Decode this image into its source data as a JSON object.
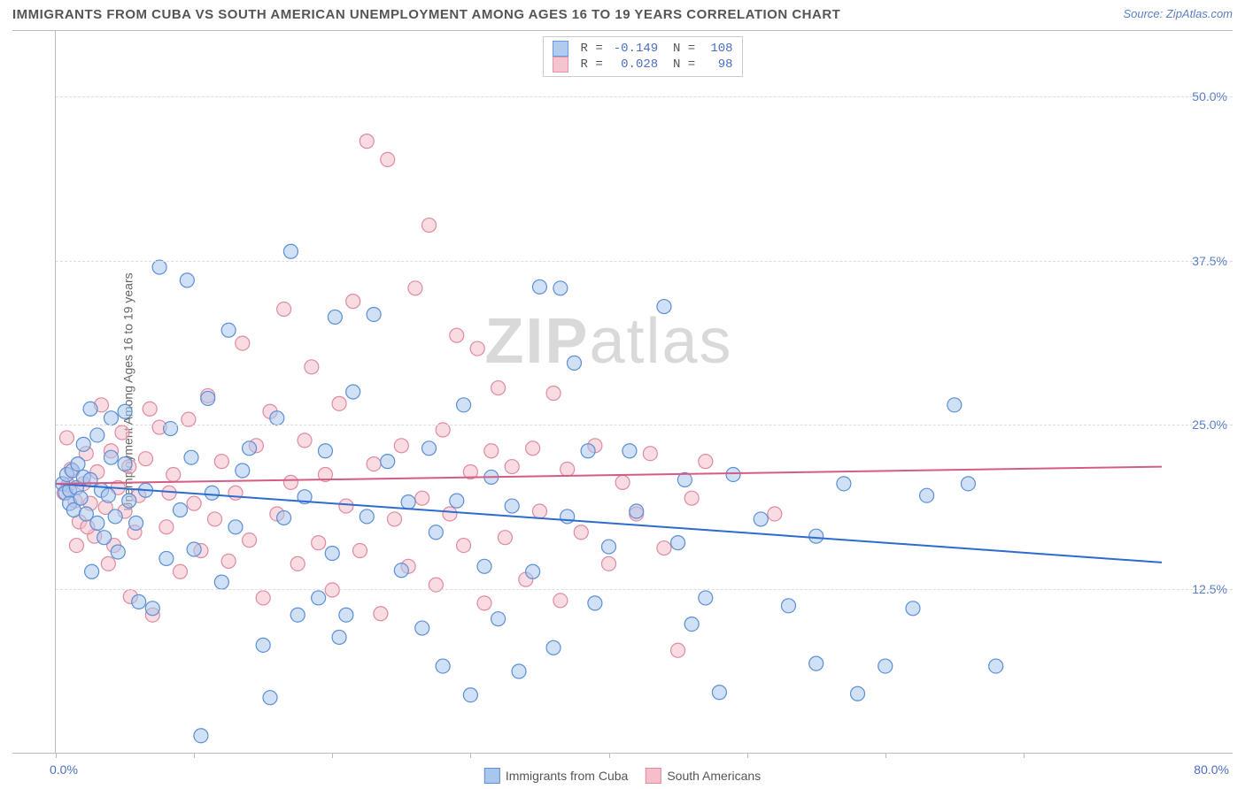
{
  "title": "IMMIGRANTS FROM CUBA VS SOUTH AMERICAN UNEMPLOYMENT AMONG AGES 16 TO 19 YEARS CORRELATION CHART",
  "source": "Source: ZipAtlas.com",
  "ylabel": "Unemployment Among Ages 16 to 19 years",
  "watermark_bold": "ZIP",
  "watermark_rest": "atlas",
  "xlim": [
    0,
    80
  ],
  "ylim": [
    0,
    55
  ],
  "x_left_label": "0.0%",
  "x_right_label": "80.0%",
  "y_ticks": [
    {
      "v": 12.5,
      "label": "12.5%"
    },
    {
      "v": 25.0,
      "label": "25.0%"
    },
    {
      "v": 37.5,
      "label": "37.5%"
    },
    {
      "v": 50.0,
      "label": "50.0%"
    }
  ],
  "x_tick_positions": [
    0,
    10,
    20,
    30,
    40,
    50,
    60,
    70
  ],
  "series": [
    {
      "key": "cuba",
      "label": "Immigrants from Cuba",
      "fill": "#a9c6ec",
      "stroke": "#5b8fd6",
      "fill_opacity": 0.55,
      "line_color": "#2e6bd0",
      "line_width": 2,
      "r": "-0.149",
      "n": "108",
      "trend": {
        "y_at_xmin": 20.5,
        "y_at_xmax": 14.5
      },
      "points": [
        [
          0.5,
          20.5
        ],
        [
          0.7,
          19.8
        ],
        [
          0.8,
          21.2
        ],
        [
          1,
          20
        ],
        [
          1,
          19
        ],
        [
          1.2,
          21.5
        ],
        [
          1.3,
          18.5
        ],
        [
          1.5,
          20.2
        ],
        [
          1.6,
          22
        ],
        [
          1.8,
          19.4
        ],
        [
          2,
          21
        ],
        [
          2,
          23.5
        ],
        [
          2.2,
          18.2
        ],
        [
          2.5,
          20.8
        ],
        [
          2.5,
          26.2
        ],
        [
          2.6,
          13.8
        ],
        [
          3,
          24.2
        ],
        [
          3,
          17.5
        ],
        [
          3.3,
          20
        ],
        [
          3.5,
          16.4
        ],
        [
          3.8,
          19.6
        ],
        [
          4,
          25.5
        ],
        [
          4,
          22.5
        ],
        [
          4.3,
          18
        ],
        [
          4.5,
          15.3
        ],
        [
          5,
          22
        ],
        [
          5,
          26
        ],
        [
          5.3,
          19.2
        ],
        [
          5.8,
          17.5
        ],
        [
          6,
          11.5
        ],
        [
          6.5,
          20
        ],
        [
          7,
          11
        ],
        [
          7.5,
          37
        ],
        [
          8,
          14.8
        ],
        [
          8.3,
          24.7
        ],
        [
          9,
          18.5
        ],
        [
          9.5,
          36
        ],
        [
          9.8,
          22.5
        ],
        [
          10,
          15.5
        ],
        [
          10.5,
          1.3
        ],
        [
          11,
          27
        ],
        [
          11.3,
          19.8
        ],
        [
          12,
          13
        ],
        [
          12.5,
          32.2
        ],
        [
          13,
          17.2
        ],
        [
          13.5,
          21.5
        ],
        [
          14,
          23.2
        ],
        [
          15,
          8.2
        ],
        [
          15.5,
          4.2
        ],
        [
          16,
          25.5
        ],
        [
          16.5,
          17.9
        ],
        [
          17,
          38.2
        ],
        [
          17.5,
          10.5
        ],
        [
          18,
          19.5
        ],
        [
          19,
          11.8
        ],
        [
          19.5,
          23
        ],
        [
          20,
          15.2
        ],
        [
          20.2,
          33.2
        ],
        [
          20.5,
          8.8
        ],
        [
          21,
          10.5
        ],
        [
          21.5,
          27.5
        ],
        [
          22.5,
          18
        ],
        [
          23,
          33.4
        ],
        [
          24,
          22.2
        ],
        [
          25,
          13.9
        ],
        [
          25.5,
          19.1
        ],
        [
          26.5,
          9.5
        ],
        [
          27,
          23.2
        ],
        [
          27.5,
          16.8
        ],
        [
          28,
          6.6
        ],
        [
          29,
          19.2
        ],
        [
          29.5,
          26.5
        ],
        [
          30,
          4.4
        ],
        [
          31,
          14.2
        ],
        [
          31.5,
          21
        ],
        [
          32,
          10.2
        ],
        [
          33,
          18.8
        ],
        [
          33.5,
          6.2
        ],
        [
          34.5,
          13.8
        ],
        [
          35,
          35.5
        ],
        [
          36,
          8
        ],
        [
          36.5,
          35.4
        ],
        [
          37,
          18
        ],
        [
          37.5,
          29.7
        ],
        [
          38.5,
          23
        ],
        [
          39,
          11.4
        ],
        [
          40,
          15.7
        ],
        [
          41.5,
          23
        ],
        [
          42,
          18.4
        ],
        [
          44,
          34
        ],
        [
          45,
          16
        ],
        [
          45.5,
          20.8
        ],
        [
          46,
          9.8
        ],
        [
          47,
          11.8
        ],
        [
          48,
          4.6
        ],
        [
          49,
          21.2
        ],
        [
          51,
          17.8
        ],
        [
          53,
          11.2
        ],
        [
          55,
          6.8
        ],
        [
          55,
          16.5
        ],
        [
          57,
          20.5
        ],
        [
          58,
          4.5
        ],
        [
          60,
          6.6
        ],
        [
          62,
          11
        ],
        [
          63,
          19.6
        ],
        [
          65,
          26.5
        ],
        [
          66,
          20.5
        ],
        [
          68,
          6.6
        ]
      ]
    },
    {
      "key": "south",
      "label": "South Americans",
      "fill": "#f4bfca",
      "stroke": "#e08aa0",
      "fill_opacity": 0.55,
      "line_color": "#d65c83",
      "line_width": 2,
      "r": "0.028",
      "n": "98",
      "trend": {
        "y_at_xmin": 20.5,
        "y_at_xmax": 21.8
      },
      "points": [
        [
          0.6,
          19.8
        ],
        [
          0.9,
          20.4
        ],
        [
          1.1,
          21.6
        ],
        [
          1.4,
          19.2
        ],
        [
          1.7,
          17.6
        ],
        [
          2,
          20.5
        ],
        [
          2.2,
          22.8
        ],
        [
          2.5,
          19
        ],
        [
          2.8,
          16.5
        ],
        [
          3,
          21.4
        ],
        [
          3.3,
          26.5
        ],
        [
          3.6,
          18.7
        ],
        [
          4,
          23
        ],
        [
          4.2,
          15.8
        ],
        [
          4.5,
          20.2
        ],
        [
          4.8,
          24.4
        ],
        [
          5,
          18.4
        ],
        [
          5.3,
          21.8
        ],
        [
          5.7,
          16.8
        ],
        [
          6,
          19.6
        ],
        [
          6.5,
          22.4
        ],
        [
          7,
          10.5
        ],
        [
          7.5,
          24.8
        ],
        [
          8,
          17.2
        ],
        [
          8.5,
          21.2
        ],
        [
          9,
          13.8
        ],
        [
          9.6,
          25.4
        ],
        [
          10,
          19
        ],
        [
          10.5,
          15.4
        ],
        [
          11,
          27.2
        ],
        [
          11.5,
          17.8
        ],
        [
          12,
          22.2
        ],
        [
          12.5,
          14.6
        ],
        [
          13,
          19.8
        ],
        [
          13.5,
          31.2
        ],
        [
          14,
          16.2
        ],
        [
          14.5,
          23.4
        ],
        [
          15,
          11.8
        ],
        [
          15.5,
          26
        ],
        [
          16,
          18.2
        ],
        [
          16.5,
          33.8
        ],
        [
          17,
          20.6
        ],
        [
          17.5,
          14.4
        ],
        [
          18,
          23.8
        ],
        [
          18.5,
          29.4
        ],
        [
          19,
          16
        ],
        [
          19.5,
          21.2
        ],
        [
          20,
          12.4
        ],
        [
          20.5,
          26.6
        ],
        [
          21,
          18.8
        ],
        [
          21.5,
          34.4
        ],
        [
          22,
          15.4
        ],
        [
          22.5,
          46.6
        ],
        [
          23,
          22
        ],
        [
          23.5,
          10.6
        ],
        [
          24,
          45.2
        ],
        [
          24.5,
          17.8
        ],
        [
          25,
          23.4
        ],
        [
          25.5,
          14.2
        ],
        [
          26,
          35.4
        ],
        [
          26.5,
          19.4
        ],
        [
          27,
          40.2
        ],
        [
          27.5,
          12.8
        ],
        [
          28,
          24.6
        ],
        [
          28.5,
          18.2
        ],
        [
          29,
          31.8
        ],
        [
          29.5,
          15.8
        ],
        [
          30,
          21.4
        ],
        [
          30.5,
          30.8
        ],
        [
          31,
          11.4
        ],
        [
          31.5,
          23
        ],
        [
          32,
          27.8
        ],
        [
          32.5,
          16.4
        ],
        [
          33,
          21.8
        ],
        [
          34,
          13.2
        ],
        [
          34.5,
          23.2
        ],
        [
          35,
          18.4
        ],
        [
          36,
          27.4
        ],
        [
          36.5,
          11.6
        ],
        [
          37,
          21.6
        ],
        [
          38,
          16.8
        ],
        [
          39,
          23.4
        ],
        [
          40,
          14.4
        ],
        [
          41,
          20.6
        ],
        [
          42,
          18.2
        ],
        [
          43,
          22.8
        ],
        [
          44,
          15.6
        ],
        [
          45,
          7.8
        ],
        [
          46,
          19.4
        ],
        [
          47,
          22.2
        ],
        [
          52,
          18.2
        ],
        [
          0.8,
          24
        ],
        [
          1.5,
          15.8
        ],
        [
          2.3,
          17.2
        ],
        [
          3.8,
          14.4
        ],
        [
          5.4,
          11.9
        ],
        [
          6.8,
          26.2
        ],
        [
          8.2,
          19.8
        ]
      ]
    }
  ],
  "marker_radius": 8,
  "marker_stroke_width": 1.2,
  "background_color": "#ffffff",
  "grid_dash_color": "#dddddd",
  "axis_color": "#bbbbbb",
  "tick_label_color": "#4a6fc4",
  "title_color": "#555555",
  "title_fontsize": 15,
  "label_fontsize": 14
}
